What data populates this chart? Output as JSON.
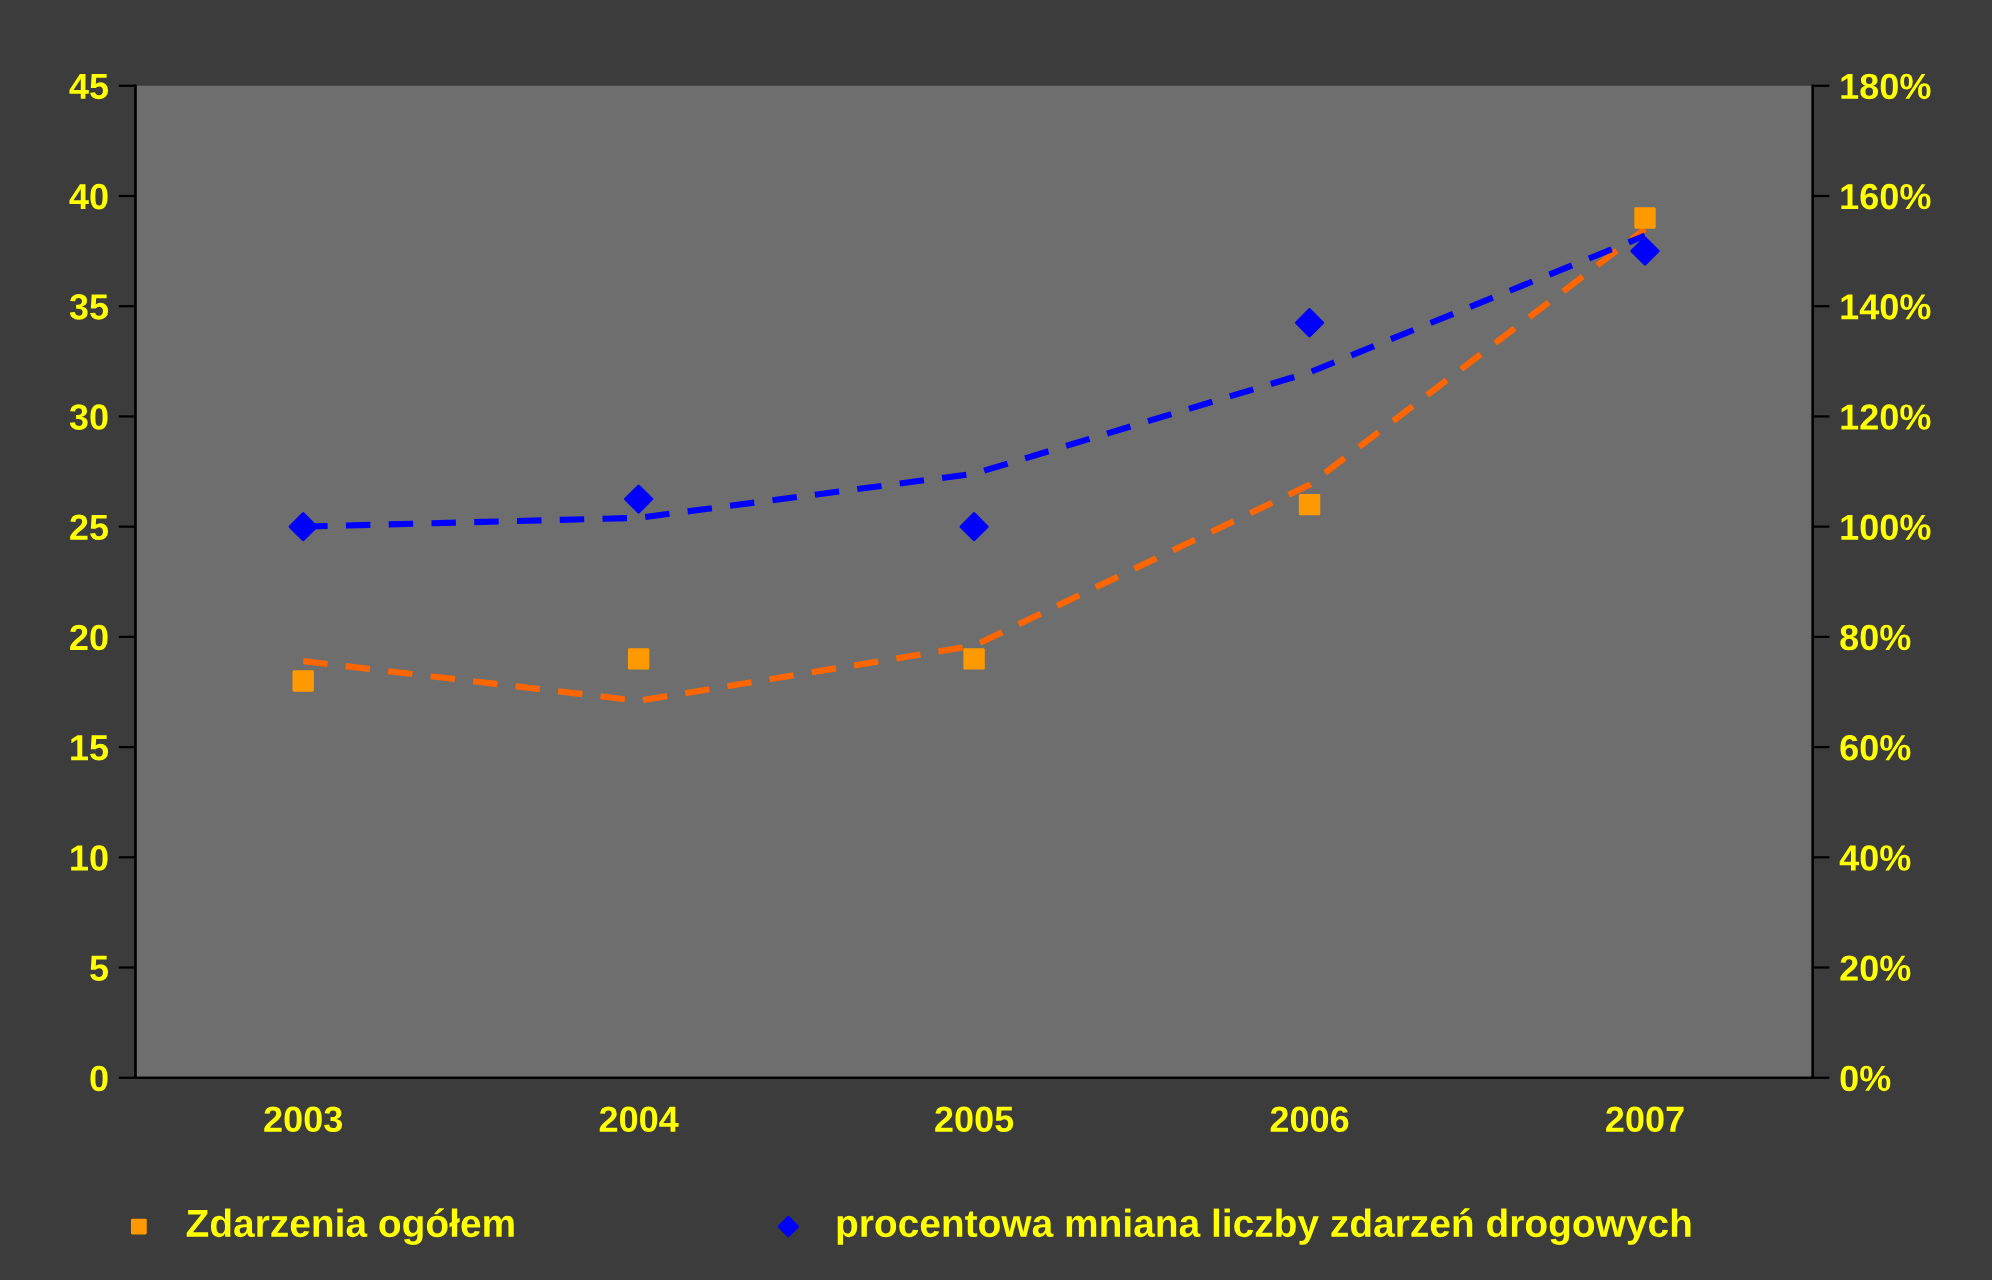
{
  "chart_data": {
    "type": "scatter",
    "categories": [
      "2003",
      "2004",
      "2005",
      "2006",
      "2007"
    ],
    "series": [
      {
        "name": "Zdarzenia ogółem",
        "color": "#ff9900",
        "marker": "square",
        "values": [
          18,
          19,
          19,
          26,
          39
        ]
      },
      {
        "name": "procentowa mniana liczby zdarzeń drogowych",
        "axis": "y2",
        "color": "#0000ff",
        "marker": "diamond",
        "values": [
          100,
          105,
          100,
          137,
          150
        ]
      },
      {
        "type": "line",
        "color": "#ff6600",
        "line_style": "dashed",
        "marker": "none",
        "values": [
          18.9,
          17.1,
          19.6,
          26.9,
          38.5
        ]
      },
      {
        "type": "line",
        "axis": "y2",
        "color": "#0000ff",
        "line_style": "dashed",
        "marker": "none",
        "values": [
          100,
          101.6,
          109.6,
          128,
          152.8
        ]
      }
    ],
    "ylim": [
      0,
      45
    ],
    "yticks": [
      0,
      5,
      10,
      15,
      20,
      25,
      30,
      35,
      40,
      45
    ],
    "y2lim": [
      0,
      180
    ],
    "y2ticks": [
      {
        "value": 0,
        "label": "0%"
      },
      {
        "value": 20,
        "label": "20%"
      },
      {
        "value": 40,
        "label": "40%"
      },
      {
        "value": 60,
        "label": "60%"
      },
      {
        "value": 80,
        "label": "80%"
      },
      {
        "value": 100,
        "label": "100%"
      },
      {
        "value": 120,
        "label": "120%"
      },
      {
        "value": 140,
        "label": "140%"
      },
      {
        "value": 160,
        "label": "160%"
      },
      {
        "value": 180,
        "label": "180%"
      }
    ],
    "grid": false,
    "legend": "bottom"
  }
}
